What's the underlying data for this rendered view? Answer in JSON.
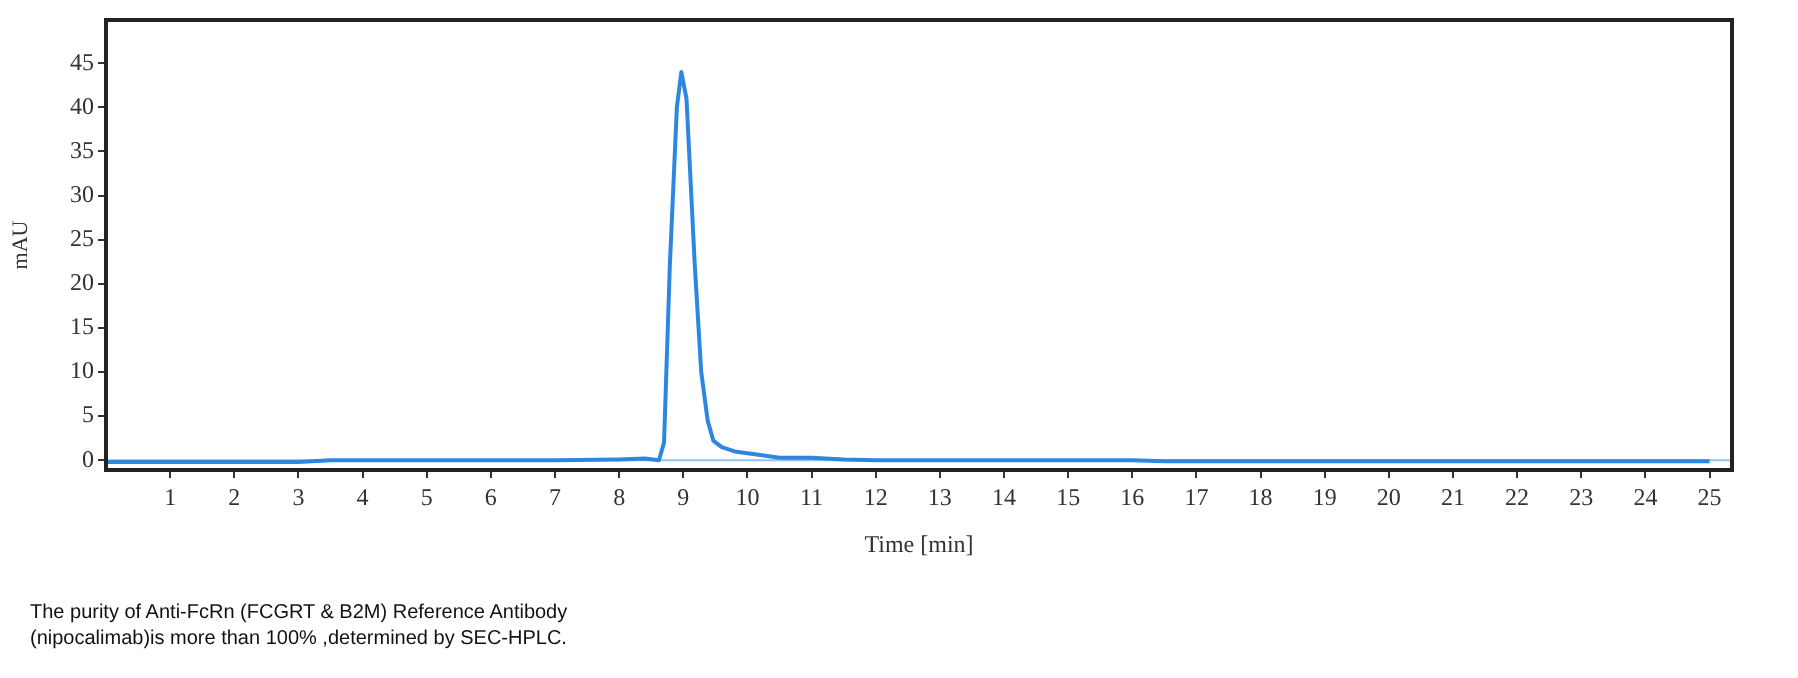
{
  "chart_data": {
    "type": "line",
    "xlabel": "Time [min]",
    "ylabel": "mAU",
    "annotations": [
      "The purity of Anti-FcRn (FCGRT & B2M) Reference Antibody (nipocalimab)is more than 100% ,determined by SEC-HPLC."
    ],
    "xlim": [
      0,
      25.35
    ],
    "ylim": [
      -1.1,
      49.9
    ],
    "xticks": [
      1,
      2,
      3,
      4,
      5,
      6,
      7,
      8,
      9,
      10,
      11,
      12,
      13,
      14,
      15,
      16,
      17,
      18,
      19,
      20,
      21,
      22,
      23,
      24,
      25
    ],
    "yticks": [
      0,
      5,
      10,
      15,
      20,
      25,
      30,
      35,
      40,
      45
    ],
    "grid": false,
    "legend": false,
    "marker": "none",
    "line_style": "solid",
    "ref_lines": [
      {
        "axis": "y",
        "value": 0,
        "color": "#8fc3f0"
      }
    ],
    "series": [
      {
        "color": "#2f86e0",
        "x": [
          0,
          3,
          3.5,
          7,
          8,
          8.4,
          8.62,
          8.7,
          8.79,
          8.9,
          8.97,
          9.05,
          9.18,
          9.28,
          9.38,
          9.47,
          9.6,
          9.8,
          10.2,
          10.5,
          11,
          11.5,
          12,
          16,
          16.5,
          25
        ],
        "values": [
          -0.2,
          -0.2,
          0,
          0,
          0.1,
          0.2,
          0,
          2,
          22,
          40,
          44,
          41,
          22,
          10,
          4.5,
          2.2,
          1.5,
          1,
          0.6,
          0.3,
          0.3,
          0.1,
          0,
          0,
          -0.1,
          -0.1
        ]
      }
    ]
  }
}
